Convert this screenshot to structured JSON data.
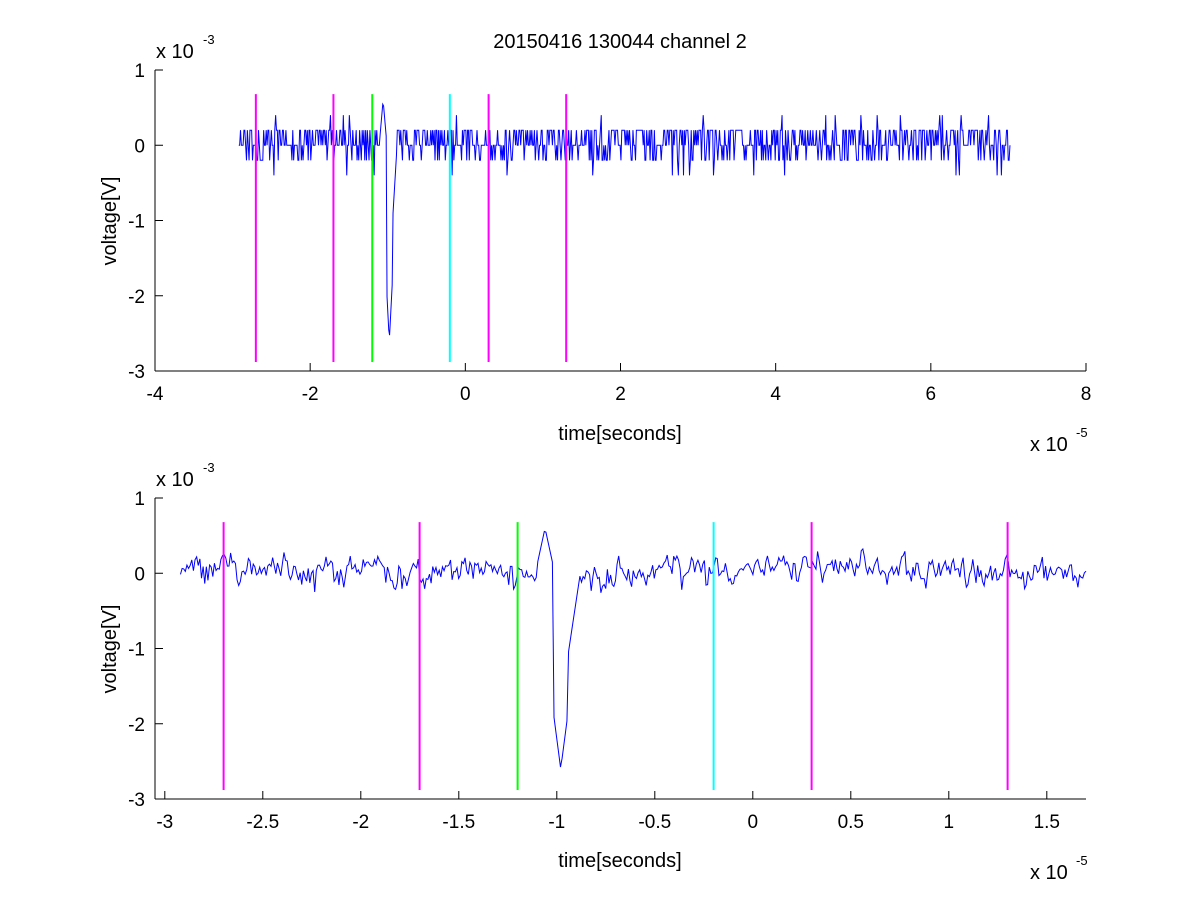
{
  "chart_data": [
    {
      "type": "line",
      "title": "20150416 130044 channel 2",
      "xlabel": "time[seconds]",
      "ylabel": "voltage[V]",
      "x_multiplier": "x 10",
      "x_exponent": "-5",
      "y_multiplier": "x 10",
      "y_exponent": "-3",
      "xlim": [
        -4,
        8
      ],
      "ylim": [
        -3,
        1
      ],
      "xticks": [
        -4,
        -2,
        0,
        2,
        4,
        6,
        8
      ],
      "xtick_labels": [
        "-4",
        "-2",
        "0",
        "2",
        "4",
        "6",
        "8"
      ],
      "yticks": [
        1,
        0,
        -1,
        -2,
        -3
      ],
      "ytick_labels": [
        "1",
        "0",
        "-1",
        "-2",
        "-3"
      ],
      "grid": false,
      "signal": {
        "color": "#0000ff",
        "x_start": -2.92,
        "x_end": 7.02,
        "baseline": 0,
        "noise_levels": [
          -0.2,
          0,
          0.2
        ],
        "spike": {
          "x": -0.98,
          "min": -2.6,
          "preceding_max": 0.6
        }
      },
      "markers": [
        {
          "x": -2.7,
          "color": "#ff00ff",
          "y_top": 0.68,
          "y_bottom": -2.88
        },
        {
          "x": -1.7,
          "color": "#ff00ff",
          "y_top": 0.68,
          "y_bottom": -2.88
        },
        {
          "x": -1.2,
          "color": "#00ff00",
          "y_top": 0.68,
          "y_bottom": -2.88
        },
        {
          "x": -0.2,
          "color": "#00ffff",
          "y_top": 0.68,
          "y_bottom": -2.88
        },
        {
          "x": 0.3,
          "color": "#ff00ff",
          "y_top": 0.68,
          "y_bottom": -2.88
        },
        {
          "x": 1.3,
          "color": "#ff00ff",
          "y_top": 0.68,
          "y_bottom": -2.88
        }
      ]
    },
    {
      "type": "line",
      "title": "",
      "xlabel": "time[seconds]",
      "ylabel": "voltage[V]",
      "x_multiplier": "x 10",
      "x_exponent": "-5",
      "y_multiplier": "x 10",
      "y_exponent": "-3",
      "xlim": [
        -3.05,
        1.7
      ],
      "ylim": [
        -3,
        1
      ],
      "xticks": [
        -3,
        -2.5,
        -2,
        -1.5,
        -1,
        -0.5,
        0,
        0.5,
        1,
        1.5
      ],
      "xtick_labels": [
        "-3",
        "-2.5",
        "-2",
        "-1.5",
        "-1",
        "-0.5",
        "0",
        "0.5",
        "1",
        "1.5"
      ],
      "yticks": [
        1,
        0,
        -1,
        -2,
        -3
      ],
      "ytick_labels": [
        "1",
        "0",
        "-1",
        "-2",
        "-3"
      ],
      "grid": false,
      "signal": {
        "color": "#0000ff",
        "x_start": -2.92,
        "x_end": 1.7,
        "baseline": 0,
        "noise_levels": [
          -0.2,
          0,
          0.2
        ],
        "spike": {
          "x": -0.98,
          "min": -2.6,
          "preceding_max": 0.6
        }
      },
      "markers": [
        {
          "x": -2.7,
          "color": "#ff00ff",
          "y_top": 0.68,
          "y_bottom": -2.88
        },
        {
          "x": -1.7,
          "color": "#ff00ff",
          "y_top": 0.68,
          "y_bottom": -2.88
        },
        {
          "x": -1.2,
          "color": "#00ff00",
          "y_top": 0.68,
          "y_bottom": -2.88
        },
        {
          "x": -0.2,
          "color": "#00ffff",
          "y_top": 0.68,
          "y_bottom": -2.88
        },
        {
          "x": 0.3,
          "color": "#ff00ff",
          "y_top": 0.68,
          "y_bottom": -2.88
        },
        {
          "x": 1.3,
          "color": "#ff00ff",
          "y_top": 0.68,
          "y_bottom": -2.88
        }
      ]
    }
  ]
}
